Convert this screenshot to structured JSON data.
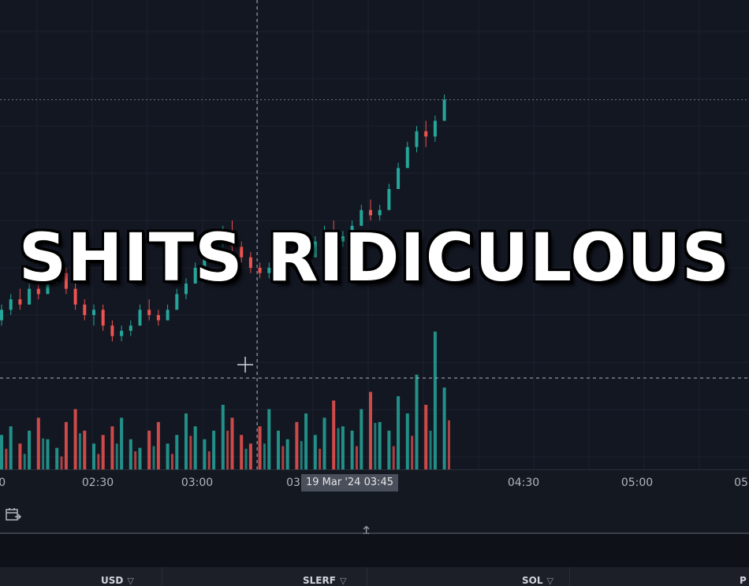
{
  "overlay": {
    "caption": "SHITS RIDICULOUS"
  },
  "colors": {
    "background": "#131722",
    "grid": "#1e2230",
    "up": "#26a69a",
    "down": "#ef5350",
    "crosshair": "#b2b5be"
  },
  "time_axis": {
    "ticks": [
      "02:30",
      "03:00",
      "03",
      "04:30",
      "05:00",
      "05"
    ],
    "trailing_fragment": ")0",
    "crosshair_label": "19 Mar '24   03:45"
  },
  "toolbar": {
    "calendar_icon": "calendar-range-icon"
  },
  "columns": [
    {
      "label": "USD"
    },
    {
      "label": "SLERF"
    },
    {
      "label": "SOL"
    },
    {
      "label": "P"
    }
  ],
  "chart_data": {
    "type": "candlestick",
    "x_start": "02:00",
    "x_step_minutes": 1.6,
    "candles": [
      [
        4.0,
        4.3,
        3.9,
        4.2
      ],
      [
        4.2,
        4.5,
        4.1,
        4.4
      ],
      [
        4.4,
        4.6,
        4.2,
        4.3
      ],
      [
        4.3,
        4.7,
        4.3,
        4.6
      ],
      [
        4.6,
        4.8,
        4.4,
        4.5
      ],
      [
        4.5,
        4.9,
        4.5,
        4.8
      ],
      [
        4.8,
        5.0,
        4.7,
        4.9
      ],
      [
        4.9,
        5.0,
        4.5,
        4.6
      ],
      [
        4.6,
        4.7,
        4.2,
        4.3
      ],
      [
        4.3,
        4.4,
        4.0,
        4.1
      ],
      [
        4.1,
        4.3,
        3.9,
        4.2
      ],
      [
        4.2,
        4.3,
        3.8,
        3.9
      ],
      [
        3.9,
        4.0,
        3.6,
        3.7
      ],
      [
        3.7,
        3.9,
        3.6,
        3.8
      ],
      [
        3.8,
        4.0,
        3.7,
        3.9
      ],
      [
        3.9,
        4.3,
        3.9,
        4.2
      ],
      [
        4.2,
        4.4,
        4.0,
        4.1
      ],
      [
        4.1,
        4.2,
        3.9,
        4.0
      ],
      [
        4.0,
        4.3,
        4.0,
        4.2
      ],
      [
        4.2,
        4.6,
        4.2,
        4.5
      ],
      [
        4.5,
        4.8,
        4.4,
        4.7
      ],
      [
        4.7,
        5.1,
        4.7,
        5.0
      ],
      [
        5.0,
        5.4,
        5.0,
        5.3
      ],
      [
        5.3,
        5.6,
        5.2,
        5.5
      ],
      [
        5.5,
        5.8,
        5.4,
        5.7
      ],
      [
        5.7,
        5.9,
        5.3,
        5.4
      ],
      [
        5.4,
        5.5,
        5.1,
        5.2
      ],
      [
        5.2,
        5.3,
        4.9,
        5.0
      ],
      [
        5.0,
        5.1,
        4.8,
        4.9
      ],
      [
        4.9,
        5.1,
        4.8,
        5.0
      ],
      [
        5.0,
        5.3,
        5.0,
        5.2
      ],
      [
        5.2,
        5.4,
        5.1,
        5.3
      ],
      [
        5.3,
        5.4,
        5.0,
        5.1
      ],
      [
        5.1,
        5.3,
        5.0,
        5.2
      ],
      [
        5.2,
        5.6,
        5.2,
        5.5
      ],
      [
        5.5,
        5.8,
        5.4,
        5.7
      ],
      [
        5.7,
        5.9,
        5.4,
        5.5
      ],
      [
        5.5,
        5.7,
        5.4,
        5.6
      ],
      [
        5.6,
        5.9,
        5.5,
        5.8
      ],
      [
        5.8,
        6.2,
        5.8,
        6.1
      ],
      [
        6.1,
        6.3,
        5.9,
        6.0
      ],
      [
        6.0,
        6.2,
        5.9,
        6.1
      ],
      [
        6.1,
        6.6,
        6.1,
        6.5
      ],
      [
        6.5,
        7.0,
        6.5,
        6.9
      ],
      [
        6.9,
        7.4,
        6.9,
        7.3
      ],
      [
        7.3,
        7.7,
        7.2,
        7.6
      ],
      [
        7.6,
        7.8,
        7.3,
        7.5
      ],
      [
        7.5,
        7.9,
        7.4,
        7.8
      ],
      [
        7.8,
        8.3,
        7.8,
        8.2
      ]
    ],
    "volumes": [
      8,
      10,
      6,
      9,
      12,
      7,
      5,
      11,
      14,
      9,
      6,
      8,
      10,
      12,
      7,
      5,
      9,
      11,
      6,
      8,
      13,
      10,
      7,
      9,
      15,
      12,
      8,
      6,
      10,
      14,
      9,
      7,
      11,
      13,
      8,
      12,
      16,
      10,
      9,
      14,
      18,
      11,
      9,
      17,
      13,
      22,
      15,
      32,
      19
    ],
    "y_range": [
      0,
      9
    ],
    "grid": true,
    "crosshair": {
      "x_index": 27.7,
      "y_value": 1.2
    }
  }
}
